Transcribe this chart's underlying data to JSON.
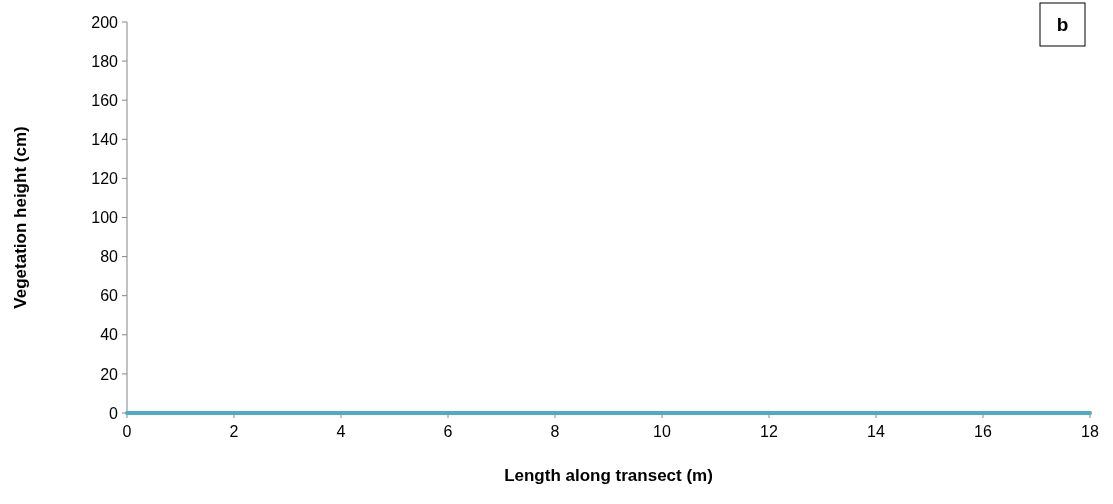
{
  "chart_data": {
    "type": "line",
    "xlabel": "Length along transect (m)",
    "ylabel": "Vegetation height (cm)",
    "annotations": [
      "b"
    ],
    "x": [
      0,
      18
    ],
    "series": [
      {
        "color": "#4bacc6",
        "values": [
          0,
          0
        ]
      }
    ],
    "xlim": [
      0,
      18
    ],
    "xticks": [
      0,
      2,
      4,
      6,
      8,
      10,
      12,
      14,
      16,
      18
    ],
    "ylim": [
      0,
      200
    ],
    "yticks": [
      0,
      20,
      40,
      60,
      80,
      100,
      120,
      140,
      160,
      180,
      200
    ],
    "grid": false,
    "marker": "none",
    "line_style": "solid"
  }
}
